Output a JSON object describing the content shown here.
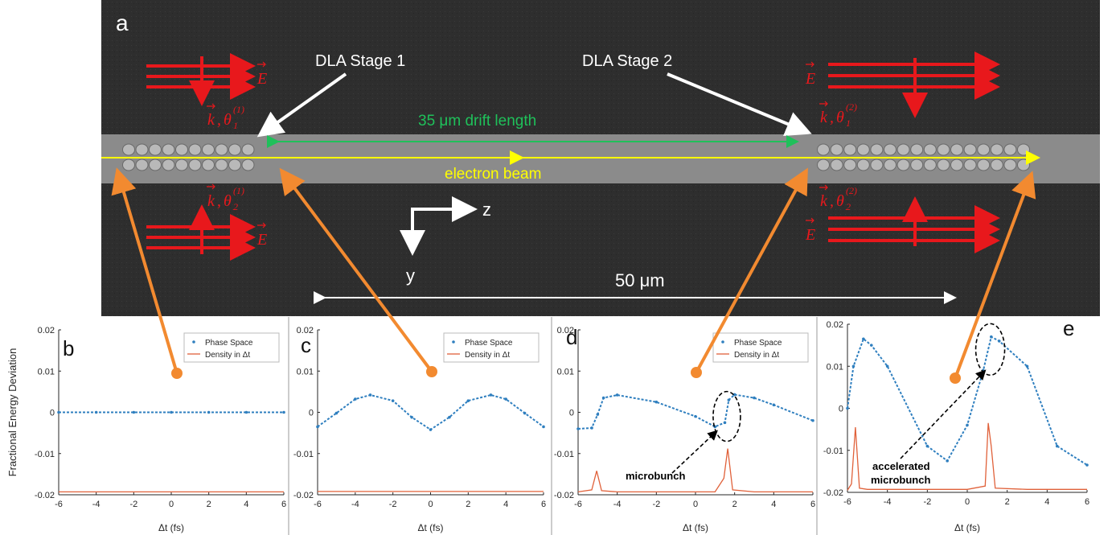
{
  "panel_a": {
    "label": "a",
    "stage1_label": "DLA Stage 1",
    "stage2_label": "DLA Stage 2",
    "drift_label": "35 μm drift length",
    "beam_label": "electron beam",
    "scale_label": "50 μm",
    "axis_z": "z",
    "axis_y": "y",
    "field_E": "E",
    "field_k": "k",
    "theta_sym": "θ",
    "sub1": "1",
    "sub2": "2",
    "sup1": "(1)",
    "sup2": "(2)",
    "colors": {
      "laser": "#e8181c",
      "beam": "#ffff00",
      "drift": "#1fc05a",
      "pointer": "#f28a30",
      "annotation": "#ffffff"
    }
  },
  "plots": {
    "y_axis_label": "Fractional Energy Deviation",
    "x_axis_label": "Δt (fs)",
    "legend_phase": "Phase Space",
    "legend_density": "Density in Δt",
    "microbunch_label": "microbunch",
    "accel_label_line1": "accelerated",
    "accel_label_line2": "microbunch",
    "colors": {
      "phase": "#2f7fbf",
      "density": "#e0613a"
    }
  },
  "chart_data": [
    {
      "type": "line",
      "panel": "b",
      "xlabel": "Δt (fs)",
      "ylabel": "Fractional Energy Deviation",
      "xlim": [
        -6,
        6
      ],
      "ylim": [
        -0.02,
        0.02
      ],
      "xticks": [
        "-6",
        "-4",
        "-2",
        "0",
        "2",
        "4",
        "6"
      ],
      "yticks": [
        "-0.02",
        "-0.01",
        "0",
        "0.01",
        "0.02"
      ],
      "legend": [
        "Phase Space",
        "Density in Δt"
      ],
      "series": [
        {
          "name": "Phase Space",
          "x": [
            -6,
            -4,
            -2,
            0,
            2,
            4,
            6
          ],
          "y": [
            0,
            0,
            0,
            0,
            0,
            0,
            0
          ]
        },
        {
          "name": "Density in Δt",
          "x": [
            -6,
            -4,
            -2,
            0,
            2,
            4,
            6
          ],
          "y": [
            -0.0193,
            -0.0193,
            -0.0193,
            -0.0193,
            -0.0193,
            -0.0193,
            -0.0193
          ]
        }
      ]
    },
    {
      "type": "line",
      "panel": "c",
      "xlabel": "Δt (fs)",
      "xlim": [
        -6,
        6
      ],
      "ylim": [
        -0.02,
        0.02
      ],
      "xticks": [
        "-6",
        "-4",
        "-2",
        "0",
        "2",
        "4",
        "6"
      ],
      "yticks": [
        "-0.02",
        "-0.01",
        "0",
        "0.01",
        "0.02"
      ],
      "legend": [
        "Phase Space",
        "Density in Δt"
      ],
      "series": [
        {
          "name": "Phase Space",
          "x": [
            -6,
            -5,
            -4,
            -3.2,
            -2,
            -1,
            0,
            1,
            2,
            3.2,
            4,
            5,
            6
          ],
          "y": [
            -0.0035,
            -0.0002,
            0.0032,
            0.0042,
            0.0028,
            -0.0012,
            -0.0042,
            -0.0012,
            0.0028,
            0.0042,
            0.0032,
            -0.0002,
            -0.0035
          ]
        },
        {
          "name": "Density in Δt",
          "x": [
            -6,
            -4,
            -2,
            0,
            2,
            4,
            6
          ],
          "y": [
            -0.0192,
            -0.0192,
            -0.0192,
            -0.0192,
            -0.0192,
            -0.0192,
            -0.0192
          ]
        }
      ]
    },
    {
      "type": "line",
      "panel": "d",
      "xlabel": "Δt (fs)",
      "xlim": [
        -6,
        6
      ],
      "ylim": [
        -0.02,
        0.02
      ],
      "xticks": [
        "-6",
        "-4",
        "-2",
        "0",
        "2",
        "4",
        "6"
      ],
      "yticks": [
        "-0.02",
        "-0.01",
        "0",
        "0.01",
        "0.02"
      ],
      "legend": [
        "Phase Space",
        "Density in Δt"
      ],
      "series": [
        {
          "name": "Phase Space",
          "x": [
            -6,
            -5.3,
            -5,
            -4.7,
            -4,
            -2,
            0,
            1,
            1.5,
            1.7,
            2,
            3,
            4,
            6
          ],
          "y": [
            -0.004,
            -0.0038,
            -0.0005,
            0.0035,
            0.0042,
            0.0025,
            -0.001,
            -0.0035,
            -0.0025,
            0.003,
            0.0043,
            0.0035,
            0.0018,
            -0.002
          ]
        },
        {
          "name": "Density in Δt",
          "x": [
            -6,
            -5.3,
            -5.05,
            -4.8,
            -4,
            0,
            1,
            1.45,
            1.65,
            1.9,
            3,
            6
          ],
          "y": [
            -0.0193,
            -0.0188,
            -0.0142,
            -0.019,
            -0.0193,
            -0.0193,
            -0.0193,
            -0.016,
            -0.0088,
            -0.0188,
            -0.0193,
            -0.0193
          ]
        }
      ]
    },
    {
      "type": "line",
      "panel": "e",
      "xlabel": "Δt (fs)",
      "xlim": [
        -6,
        6
      ],
      "ylim": [
        -0.02,
        0.02
      ],
      "xticks": [
        "-6",
        "-4",
        "-2",
        "0",
        "2",
        "4",
        "6"
      ],
      "yticks": [
        "-0.02",
        "-0.01",
        "0",
        "0.01",
        "0.02"
      ],
      "series": [
        {
          "name": "Phase Space",
          "x": [
            -6,
            -5.7,
            -5.2,
            -4.8,
            -4,
            -2,
            -1,
            0,
            0.8,
            1.2,
            1.6,
            3,
            4.5,
            6
          ],
          "y": [
            0,
            0.01,
            0.0165,
            0.015,
            0.01,
            -0.009,
            -0.0125,
            -0.004,
            0.009,
            0.017,
            0.016,
            0.01,
            -0.009,
            -0.0135
          ]
        },
        {
          "name": "Density in Δt",
          "x": [
            -6,
            -5.8,
            -5.6,
            -5.4,
            -5,
            0,
            0.9,
            1.05,
            1.2,
            1.4,
            3,
            6
          ],
          "y": [
            -0.0195,
            -0.018,
            -0.0045,
            -0.019,
            -0.0193,
            -0.0193,
            -0.0185,
            -0.0035,
            -0.009,
            -0.019,
            -0.0193,
            -0.0193
          ]
        }
      ]
    }
  ]
}
